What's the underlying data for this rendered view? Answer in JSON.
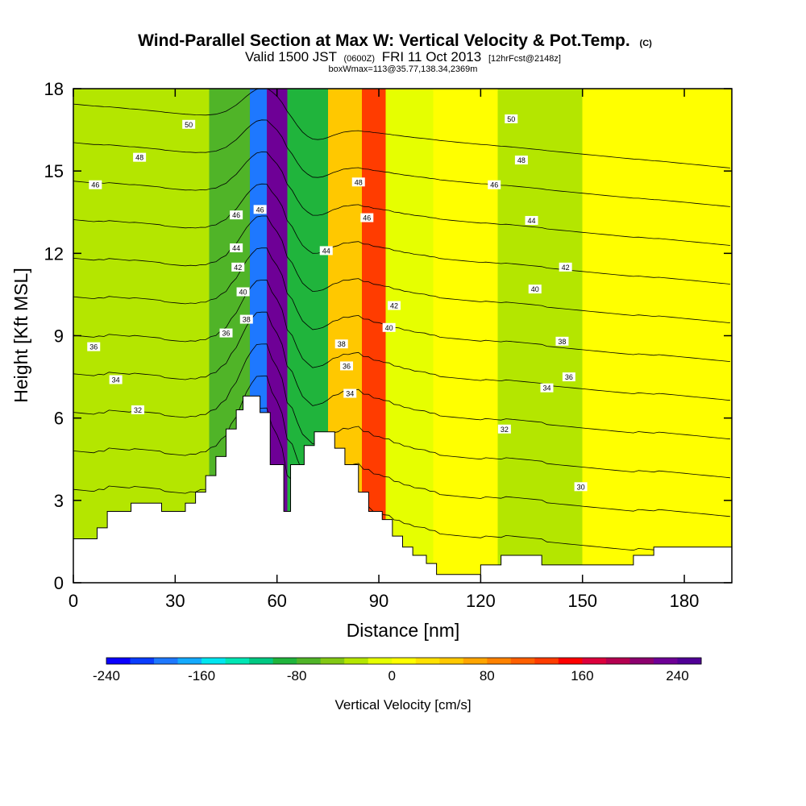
{
  "chart_data": {
    "type": "heatmap",
    "title": "Wind-Parallel Section at Max W: Vertical Velocity & Pot.Temp.",
    "title_suffix": "(C)",
    "subtitle": {
      "valid": "Valid 1500 JST",
      "utc": "(0600Z)",
      "date": "FRI 11 Oct 2013",
      "forecast": "[12hrFcst@2148z]"
    },
    "annotation": "boxWmax=113@35.77,138.34,2369m",
    "xlabel": "Distance [nm]",
    "ylabel": "Height [Kft MSL]",
    "xlim": [
      0,
      194
    ],
    "ylim": [
      0,
      18
    ],
    "x_ticks": [
      "0",
      "30",
      "60",
      "90",
      "120",
      "150",
      "180"
    ],
    "y_ticks": [
      "0",
      "3",
      "6",
      "9",
      "12",
      "15",
      "18"
    ],
    "colorbar": {
      "title": "Vertical Velocity [cm/s]",
      "range": [
        -240,
        260
      ],
      "step": 20,
      "tick_labels": [
        "-240",
        "-160",
        "-80",
        "0",
        "80",
        "160",
        "240"
      ],
      "colors": [
        "#0a00ff",
        "#0a3dff",
        "#1e78ff",
        "#14aaff",
        "#00e6f0",
        "#00e6b4",
        "#00c882",
        "#20b43c",
        "#50b428",
        "#82c814",
        "#b4e600",
        "#e6ff00",
        "#ffff00",
        "#ffe100",
        "#ffc800",
        "#ffa500",
        "#ff8200",
        "#ff5f00",
        "#ff3c00",
        "#ff0000",
        "#dc003c",
        "#b40050",
        "#8c006e",
        "#6e0096",
        "#500096"
      ]
    },
    "vertical_velocity_bands": [
      {
        "x0": 0,
        "x1": 40,
        "value": -40
      },
      {
        "x0": 40,
        "x1": 52,
        "value": -80
      },
      {
        "x0": 52,
        "x1": 57,
        "value": -200
      },
      {
        "x0": 57,
        "x1": 63,
        "value": 220
      },
      {
        "x0": 63,
        "x1": 75,
        "value": -100
      },
      {
        "x0": 75,
        "x1": 85,
        "value": 40
      },
      {
        "x0": 85,
        "x1": 92,
        "value": 120
      },
      {
        "x0": 92,
        "x1": 106,
        "value": -20
      },
      {
        "x0": 106,
        "x1": 125,
        "value": 10
      },
      {
        "x0": 125,
        "x1": 150,
        "value": -30
      },
      {
        "x0": 150,
        "x1": 194,
        "value": 5
      }
    ],
    "terrain": [
      [
        0,
        1.6
      ],
      [
        7,
        1.6
      ],
      [
        7,
        2
      ],
      [
        10,
        2
      ],
      [
        10,
        2.6
      ],
      [
        17,
        2.6
      ],
      [
        17,
        2.9
      ],
      [
        26,
        2.9
      ],
      [
        26,
        2.6
      ],
      [
        33,
        2.6
      ],
      [
        33,
        2.9
      ],
      [
        36,
        2.9
      ],
      [
        36,
        3.3
      ],
      [
        39,
        3.3
      ],
      [
        39,
        3.9
      ],
      [
        42,
        3.9
      ],
      [
        42,
        4.6
      ],
      [
        45,
        4.6
      ],
      [
        45,
        5.6
      ],
      [
        48,
        5.6
      ],
      [
        48,
        6.3
      ],
      [
        50,
        6.3
      ],
      [
        50,
        6.8
      ],
      [
        55,
        6.8
      ],
      [
        55,
        6.2
      ],
      [
        58,
        6.2
      ],
      [
        58,
        4.3
      ],
      [
        62,
        4.3
      ],
      [
        62,
        2.6
      ],
      [
        64,
        2.6
      ],
      [
        64,
        4.3
      ],
      [
        68,
        4.3
      ],
      [
        68,
        5
      ],
      [
        71,
        5
      ],
      [
        71,
        5.5
      ],
      [
        77,
        5.5
      ],
      [
        77,
        4.9
      ],
      [
        80,
        4.9
      ],
      [
        80,
        4.3
      ],
      [
        84,
        4.3
      ],
      [
        84,
        3.3
      ],
      [
        87,
        3.3
      ],
      [
        87,
        2.6
      ],
      [
        91,
        2.6
      ],
      [
        91,
        2.3
      ],
      [
        94,
        2.3
      ],
      [
        94,
        1.7
      ],
      [
        97,
        1.7
      ],
      [
        97,
        1.3
      ],
      [
        100,
        1.3
      ],
      [
        100,
        1
      ],
      [
        104,
        1
      ],
      [
        104,
        0.7
      ],
      [
        107,
        0.7
      ],
      [
        107,
        0.3
      ],
      [
        120,
        0.3
      ],
      [
        120,
        0.65
      ],
      [
        126,
        0.65
      ],
      [
        126,
        1
      ],
      [
        138,
        1
      ],
      [
        138,
        0.65
      ],
      [
        165,
        0.65
      ],
      [
        165,
        1
      ],
      [
        171,
        1
      ],
      [
        171,
        1.3
      ],
      [
        194,
        1.3
      ],
      [
        194,
        0
      ]
    ],
    "potential_temperature_contours": [
      {
        "theta": 30,
        "label_at": [
          149.5,
          3.5
        ]
      },
      {
        "theta": 32,
        "label_at": [
          [
            19,
            6.3
          ],
          [
            127,
            5.6
          ]
        ]
      },
      {
        "theta": 34,
        "label_at": [
          [
            12.5,
            7.4
          ],
          [
            81.5,
            6.9
          ],
          [
            139.5,
            7.1
          ]
        ]
      },
      {
        "theta": 36,
        "label_at": [
          [
            6,
            8.6
          ],
          [
            45,
            9.1
          ],
          [
            80.5,
            7.9
          ],
          [
            146,
            7.5
          ]
        ]
      },
      {
        "theta": 38,
        "label_at": [
          [
            51,
            9.6
          ],
          [
            79,
            8.7
          ],
          [
            144,
            8.8
          ]
        ]
      },
      {
        "theta": 40,
        "label_at": [
          [
            50,
            10.6
          ],
          [
            93,
            9.3
          ],
          [
            136,
            10.7
          ]
        ]
      },
      {
        "theta": 42,
        "label_at": [
          [
            48.5,
            11.5
          ],
          [
            94.5,
            10.1
          ],
          [
            145,
            11.5
          ]
        ]
      },
      {
        "theta": 44,
        "label_at": [
          [
            48,
            12.2
          ],
          [
            74.5,
            12.1
          ],
          [
            135,
            13.2
          ]
        ]
      },
      {
        "theta": 46,
        "label_at": [
          [
            6.5,
            14.5
          ],
          [
            48,
            13.4
          ],
          [
            55,
            13.6
          ],
          [
            86.5,
            13.3
          ],
          [
            124,
            14.5
          ]
        ]
      },
      {
        "theta": 48,
        "label_at": [
          [
            19.5,
            15.5
          ],
          [
            84,
            14.6
          ],
          [
            132,
            15.4
          ]
        ]
      },
      {
        "theta": 50,
        "label_at": [
          [
            34,
            16.7
          ],
          [
            129,
            16.9
          ]
        ]
      }
    ]
  }
}
